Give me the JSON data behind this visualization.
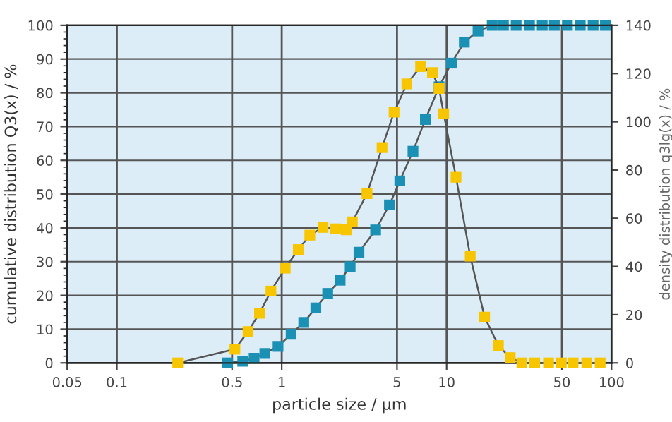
{
  "chart_data": {
    "type": "line",
    "xlabel": "particle size / µm",
    "ylabel": "cumulative distribution Q3(x) / %",
    "y2label": "density distribution q3lg(x) / %",
    "log": "x",
    "grid": true,
    "marker": "square",
    "line_style": "solid",
    "xlim": [
      0.05,
      100
    ],
    "xticks": [
      0.05,
      0.1,
      0.5,
      1,
      5,
      10,
      50,
      100
    ],
    "ylim": [
      0,
      100
    ],
    "yticks": [
      0,
      10,
      20,
      30,
      40,
      50,
      60,
      70,
      80,
      90,
      100
    ],
    "y2lim": [
      0,
      140
    ],
    "y2ticks": [
      0,
      20,
      40,
      60,
      80,
      100,
      120,
      140
    ],
    "series": [
      {
        "color": "#1a90b4",
        "x": [
          0.47,
          0.58,
          0.68,
          0.79,
          0.95,
          1.14,
          1.36,
          1.61,
          1.9,
          2.26,
          2.6,
          2.94,
          3.71,
          4.5,
          5.2,
          6.25,
          7.43,
          9.0,
          10.7,
          12.8,
          15.5,
          18.9,
          22.1,
          26.4,
          31.8,
          38,
          45,
          54,
          64.6,
          77.3,
          91.8
        ],
        "values": [
          0,
          0.5,
          1.4,
          2.8,
          4.9,
          8.5,
          12,
          16.3,
          20.6,
          24.5,
          28.5,
          32.8,
          39.4,
          46.8,
          53.9,
          62.7,
          72.1,
          81.8,
          88.8,
          95,
          98.3,
          100,
          100,
          100,
          100,
          100,
          100,
          100,
          100,
          100,
          100
        ]
      },
      {
        "color": "#f7c600",
        "axis": "y2",
        "x": [
          0.234,
          0.52,
          0.625,
          0.733,
          0.86,
          1.05,
          1.26,
          1.48,
          1.78,
          2.12,
          2.46,
          2.68,
          3.29,
          4.06,
          4.8,
          5.74,
          6.95,
          8.2,
          9.0,
          9.6,
          11.4,
          13.9,
          17,
          20.6,
          24.3,
          28.6,
          34.2,
          41.5,
          49.6,
          58.5,
          70.8,
          85.3
        ],
        "values": [
          0,
          5.7,
          13,
          20.6,
          29.8,
          39.3,
          47,
          53,
          56.2,
          55.6,
          55.2,
          58.5,
          70.2,
          89.3,
          104,
          115.7,
          122.9,
          120.4,
          113.8,
          103.3,
          77,
          44.3,
          19,
          7.2,
          2.2,
          0,
          0,
          0,
          0,
          0,
          0,
          0
        ]
      }
    ]
  }
}
